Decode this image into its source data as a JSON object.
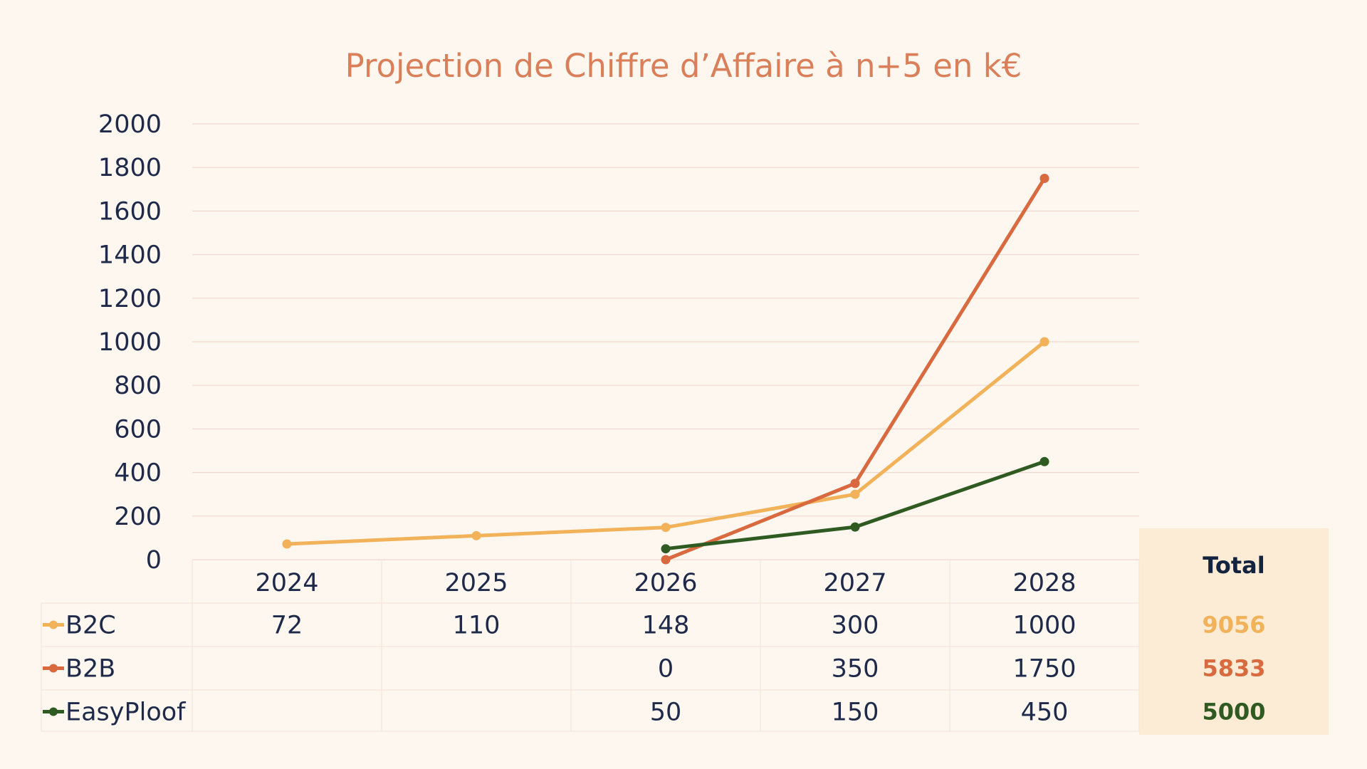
{
  "chart_data": {
    "type": "line",
    "title": "Projection de Chiffre d’Affaire à n+5 en k€",
    "categories": [
      "2024",
      "2025",
      "2026",
      "2027",
      "2028"
    ],
    "ylim": [
      0,
      2000
    ],
    "yticks": [
      0,
      200,
      400,
      600,
      800,
      1000,
      1200,
      1400,
      1600,
      1800,
      2000
    ],
    "grid": true,
    "series": [
      {
        "name": "B2C",
        "color": "#f2b25a",
        "values": [
          72,
          110,
          148,
          300,
          1000
        ]
      },
      {
        "name": "B2B",
        "color": "#d9693f",
        "values": [
          null,
          null,
          0,
          350,
          1750
        ]
      },
      {
        "name": "EasyPloof",
        "color": "#2f5a22",
        "values": [
          null,
          null,
          50,
          150,
          450
        ]
      }
    ],
    "total_header": "Total",
    "totals": [
      {
        "name": "B2C",
        "value": "9056",
        "color": "#f2b25a"
      },
      {
        "name": "B2B",
        "value": "5833",
        "color": "#d9693f"
      },
      {
        "name": "EasyPloof",
        "value": "5000",
        "color": "#2f5a22"
      }
    ]
  }
}
